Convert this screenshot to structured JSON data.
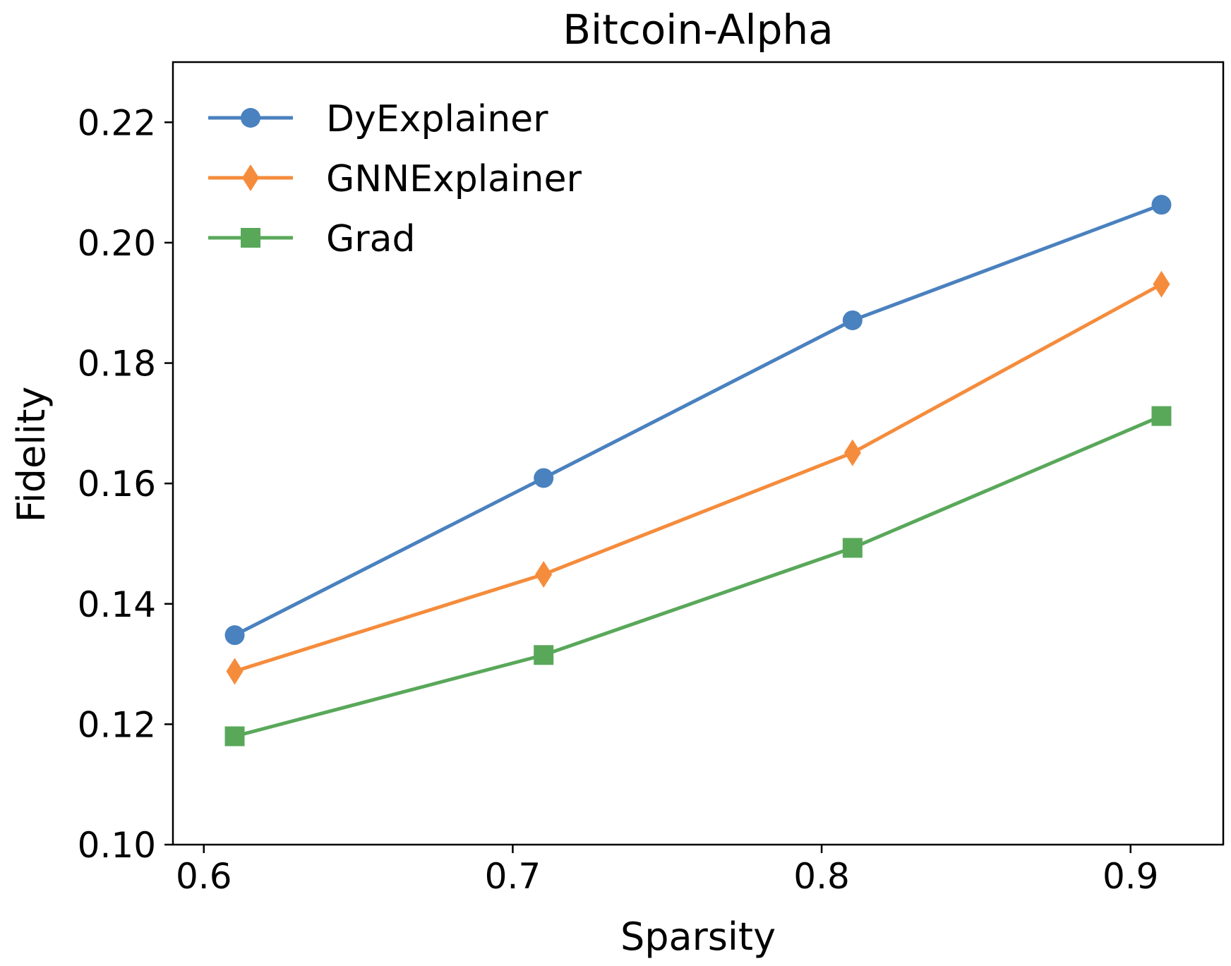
{
  "chart_data": {
    "type": "line",
    "title": "Bitcoin-Alpha",
    "xlabel": "Sparsity",
    "ylabel": "Fidelity",
    "xlim": [
      0.59,
      0.93
    ],
    "ylim": [
      0.1,
      0.23
    ],
    "xticks": [
      0.6,
      0.7,
      0.8,
      0.9
    ],
    "xtick_labels": [
      "0.6",
      "0.7",
      "0.8",
      "0.9"
    ],
    "yticks": [
      0.1,
      0.12,
      0.14,
      0.16,
      0.18,
      0.2,
      0.22
    ],
    "ytick_labels": [
      "0.10",
      "0.12",
      "0.14",
      "0.16",
      "0.18",
      "0.20",
      "0.22"
    ],
    "grid": false,
    "legend_position": "top-left",
    "x": [
      0.61,
      0.71,
      0.81,
      0.91
    ],
    "series": [
      {
        "name": "DyExplainer",
        "values": [
          0.1348,
          0.1609,
          0.1871,
          0.2063
        ],
        "color": "#4a81bf",
        "marker": "circle"
      },
      {
        "name": "GNNExplainer",
        "values": [
          0.1288,
          0.1449,
          0.1651,
          0.1931
        ],
        "color": "#f58c3c",
        "marker": "diamond"
      },
      {
        "name": "Grad",
        "values": [
          0.118,
          0.1315,
          0.1493,
          0.1712
        ],
        "color": "#59a85a",
        "marker": "square"
      }
    ]
  }
}
